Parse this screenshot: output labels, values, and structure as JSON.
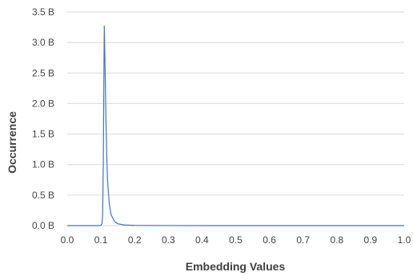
{
  "chart_data": {
    "type": "line",
    "title": "",
    "xlabel": "Embedding Values",
    "ylabel": "Occurrence",
    "xlim": [
      0.0,
      1.0
    ],
    "ylim": [
      0,
      3500000000
    ],
    "x_ticks": [
      0.0,
      0.1,
      0.2,
      0.3,
      0.4,
      0.5,
      0.6,
      0.7,
      0.8,
      0.9,
      1.0
    ],
    "x_tick_labels": [
      "0.0",
      "0.1",
      "0.2",
      "0.3",
      "0.4",
      "0.5",
      "0.6",
      "0.7",
      "0.8",
      "0.9",
      "1.0"
    ],
    "y_ticks": [
      0,
      500000000,
      1000000000,
      1500000000,
      2000000000,
      2500000000,
      3000000000,
      3500000000
    ],
    "y_tick_labels": [
      "0.0 B",
      "0.5 B",
      "1.0 B",
      "1.5 B",
      "2.0 B",
      "2.5 B",
      "3.0 B",
      "3.5 B"
    ],
    "grid": "horizontal",
    "legend": "none",
    "series": [
      {
        "color": "#4472C4",
        "x": [
          0.0,
          0.09,
          0.096,
          0.1,
          0.103,
          0.105,
          0.107,
          0.109,
          0.11,
          0.112,
          0.115,
          0.118,
          0.12,
          0.125,
          0.13,
          0.14,
          0.15,
          0.17,
          0.2,
          0.3,
          0.5,
          0.7,
          0.9,
          1.0
        ],
        "y": [
          0,
          0,
          1000000,
          5000000,
          30000000,
          150000000,
          1000000000,
          2600000000,
          3270000000,
          2700000000,
          1700000000,
          1000000000,
          700000000,
          350000000,
          180000000,
          70000000,
          30000000,
          10000000,
          3000000,
          500000,
          100000,
          30000,
          10000,
          0
        ]
      }
    ]
  }
}
